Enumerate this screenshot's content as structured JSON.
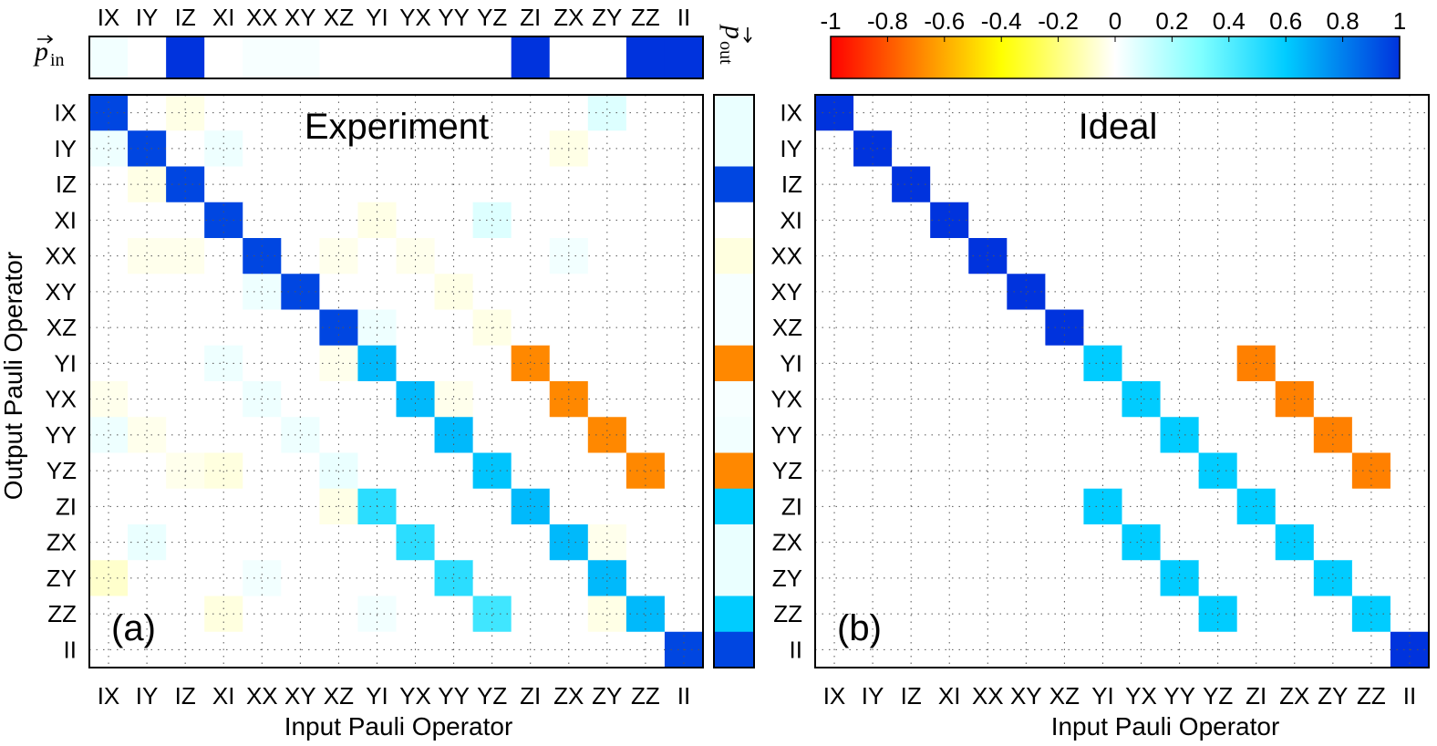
{
  "chart_data": {
    "type": "heatmap",
    "operators": [
      "IX",
      "IY",
      "IZ",
      "XI",
      "XX",
      "XY",
      "XZ",
      "YI",
      "YX",
      "YY",
      "YZ",
      "ZI",
      "ZX",
      "ZY",
      "ZZ",
      "II"
    ],
    "xlabel": "Input Pauli Operator",
    "ylabel": "Output Pauli Operator",
    "colorbar": {
      "range": [
        -1,
        1
      ],
      "ticks": [
        "-1",
        "-0.8",
        "-0.6",
        "-0.4",
        "-0.2",
        "0",
        "0.2",
        "0.4",
        "0.6",
        "0.8",
        "1"
      ],
      "stops": [
        {
          "v": -1.0,
          "c": "#ff0000"
        },
        {
          "v": -0.7,
          "c": "#ff8000"
        },
        {
          "v": -0.4,
          "c": "#ffff00"
        },
        {
          "v": 0.0,
          "c": "#ffffff"
        },
        {
          "v": 0.3,
          "c": "#80ffff"
        },
        {
          "v": 0.6,
          "c": "#00ccff"
        },
        {
          "v": 1.0,
          "c": "#0033dd"
        }
      ]
    },
    "p_in": {
      "label": "p",
      "subscript": "in",
      "values": [
        0.03,
        0,
        1,
        0,
        0.02,
        0.02,
        0,
        0,
        0,
        0,
        0,
        1,
        0,
        0,
        1,
        1
      ]
    },
    "p_out": {
      "label": "p",
      "subscript": "out",
      "values": [
        0.05,
        0.05,
        0.95,
        0,
        -0.05,
        0.02,
        0.02,
        -0.68,
        0.02,
        0.03,
        -0.68,
        0.6,
        0.05,
        0.05,
        0.6,
        0.95
      ]
    },
    "panels": [
      {
        "title": "Experiment",
        "tag": "(a)",
        "matrix": [
          [
            0.95,
            0,
            -0.04,
            0,
            0,
            0,
            0,
            0,
            0,
            0,
            0,
            0,
            0,
            0.08,
            0,
            0
          ],
          [
            0.04,
            0.95,
            0,
            0.04,
            0,
            0,
            0,
            0,
            0,
            0,
            0,
            0,
            -0.04,
            0,
            0,
            0
          ],
          [
            0,
            -0.04,
            0.95,
            0,
            0,
            0,
            0,
            0,
            0,
            0,
            0,
            0,
            0,
            0,
            0,
            0
          ],
          [
            0,
            0,
            0,
            0.95,
            0,
            0,
            0,
            -0.04,
            0,
            0,
            0.08,
            0,
            0,
            0,
            0,
            0
          ],
          [
            0,
            -0.03,
            -0.03,
            0,
            0.95,
            0,
            -0.03,
            0,
            -0.03,
            0,
            0,
            0,
            0.03,
            0,
            0,
            0
          ],
          [
            0,
            0,
            0,
            0,
            0.04,
            0.95,
            0,
            0,
            0,
            -0.04,
            0,
            0,
            0,
            0,
            0,
            0
          ],
          [
            0,
            0,
            0,
            0,
            0,
            0,
            0.95,
            0.04,
            0,
            0,
            -0.04,
            0,
            0,
            0,
            0,
            0
          ],
          [
            0,
            0,
            0,
            0.04,
            0,
            0,
            -0.03,
            0.65,
            0,
            0,
            0,
            -0.68,
            0,
            0,
            0,
            0
          ],
          [
            -0.03,
            0,
            0,
            0,
            0.04,
            0,
            0,
            0,
            0.65,
            -0.03,
            0,
            0,
            -0.68,
            0,
            0,
            0
          ],
          [
            0.04,
            -0.03,
            0,
            0,
            0,
            0.04,
            0,
            0,
            0,
            0.65,
            0,
            0,
            0,
            -0.68,
            0,
            0
          ],
          [
            0,
            0,
            -0.03,
            -0.05,
            0,
            0,
            0.05,
            0,
            0,
            0,
            0.62,
            0,
            0,
            0,
            -0.68,
            0
          ],
          [
            0,
            0,
            0,
            0,
            0,
            0,
            -0.04,
            0.5,
            0,
            0,
            0,
            0.65,
            0,
            0,
            0,
            0
          ],
          [
            0,
            0.05,
            0,
            0,
            0,
            0,
            0,
            0,
            0.5,
            0,
            0,
            0,
            0.65,
            -0.03,
            0,
            0
          ],
          [
            -0.08,
            0,
            0,
            0,
            0.03,
            0,
            0,
            0,
            0,
            0.5,
            0,
            0,
            0,
            0.65,
            0,
            0
          ],
          [
            0,
            0,
            0,
            -0.05,
            0,
            0,
            0,
            0.03,
            0,
            0,
            0.45,
            0,
            0,
            -0.04,
            0.65,
            0
          ],
          [
            0,
            0,
            0,
            0,
            0,
            0,
            0,
            0,
            0,
            0,
            0,
            0,
            0,
            0,
            0,
            0.95
          ]
        ]
      },
      {
        "title": "Ideal",
        "tag": "(b)",
        "matrix": [
          [
            1,
            0,
            0,
            0,
            0,
            0,
            0,
            0,
            0,
            0,
            0,
            0,
            0,
            0,
            0,
            0
          ],
          [
            0,
            1,
            0,
            0,
            0,
            0,
            0,
            0,
            0,
            0,
            0,
            0,
            0,
            0,
            0,
            0
          ],
          [
            0,
            0,
            1,
            0,
            0,
            0,
            0,
            0,
            0,
            0,
            0,
            0,
            0,
            0,
            0,
            0
          ],
          [
            0,
            0,
            0,
            1,
            0,
            0,
            0,
            0,
            0,
            0,
            0,
            0,
            0,
            0,
            0,
            0
          ],
          [
            0,
            0,
            0,
            0,
            1,
            0,
            0,
            0,
            0,
            0,
            0,
            0,
            0,
            0,
            0,
            0
          ],
          [
            0,
            0,
            0,
            0,
            0,
            1,
            0,
            0,
            0,
            0,
            0,
            0,
            0,
            0,
            0,
            0
          ],
          [
            0,
            0,
            0,
            0,
            0,
            0,
            1,
            0,
            0,
            0,
            0,
            0,
            0,
            0,
            0,
            0
          ],
          [
            0,
            0,
            0,
            0,
            0,
            0,
            0,
            0.6,
            0,
            0,
            0,
            -0.7,
            0,
            0,
            0,
            0
          ],
          [
            0,
            0,
            0,
            0,
            0,
            0,
            0,
            0,
            0.6,
            0,
            0,
            0,
            -0.7,
            0,
            0,
            0
          ],
          [
            0,
            0,
            0,
            0,
            0,
            0,
            0,
            0,
            0,
            0.6,
            0,
            0,
            0,
            -0.7,
            0,
            0
          ],
          [
            0,
            0,
            0,
            0,
            0,
            0,
            0,
            0,
            0,
            0,
            0.6,
            0,
            0,
            0,
            -0.7,
            0
          ],
          [
            0,
            0,
            0,
            0,
            0,
            0,
            0,
            0.6,
            0,
            0,
            0,
            0.6,
            0,
            0,
            0,
            0
          ],
          [
            0,
            0,
            0,
            0,
            0,
            0,
            0,
            0,
            0.6,
            0,
            0,
            0,
            0.6,
            0,
            0,
            0
          ],
          [
            0,
            0,
            0,
            0,
            0,
            0,
            0,
            0,
            0,
            0.6,
            0,
            0,
            0,
            0.6,
            0,
            0
          ],
          [
            0,
            0,
            0,
            0,
            0,
            0,
            0,
            0,
            0,
            0,
            0.6,
            0,
            0,
            0,
            0.6,
            0
          ],
          [
            0,
            0,
            0,
            0,
            0,
            0,
            0,
            0,
            0,
            0,
            0,
            0,
            0,
            0,
            0,
            1
          ]
        ]
      }
    ]
  }
}
